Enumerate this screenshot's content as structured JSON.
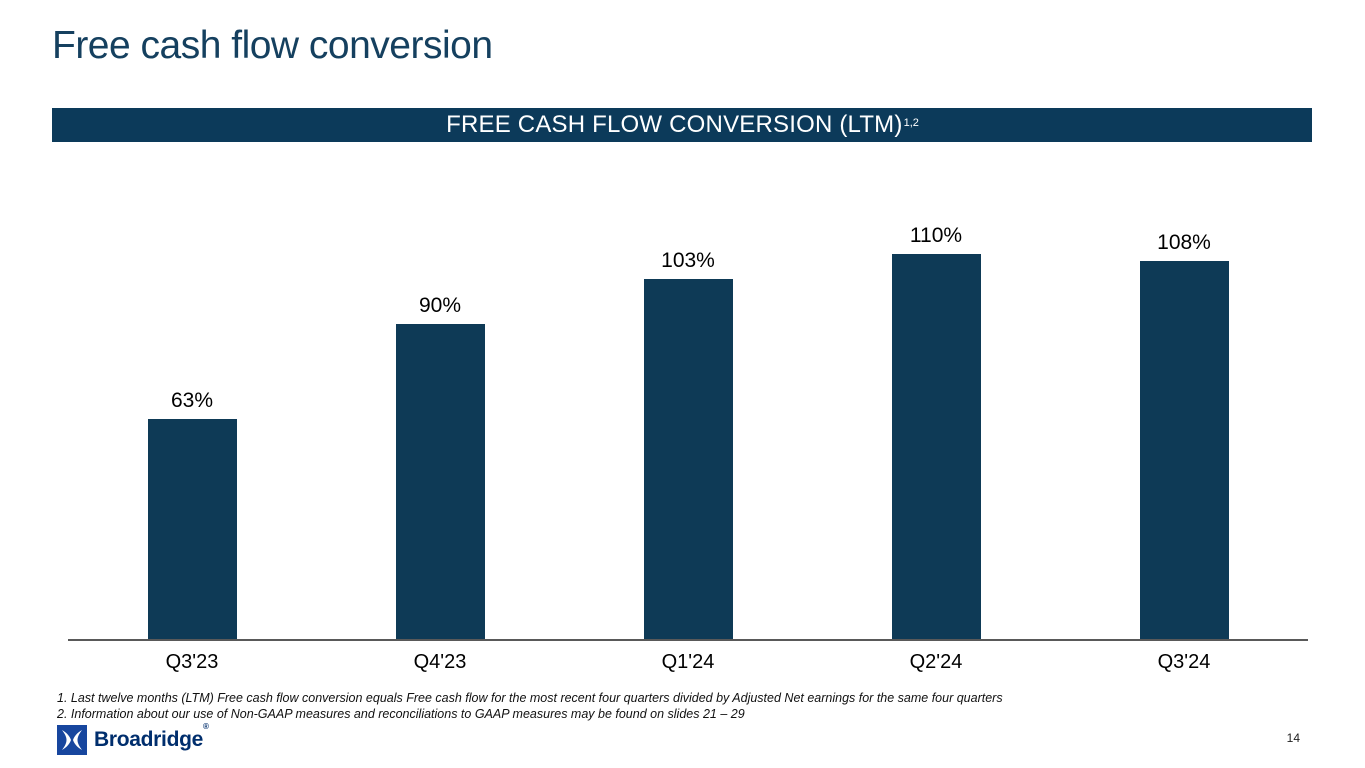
{
  "slide": {
    "title": "Free cash flow conversion",
    "page_number": "14"
  },
  "banner": {
    "text": "FREE CASH FLOW CONVERSION (LTM)",
    "superscript": "1,2"
  },
  "chart_data": {
    "type": "bar",
    "categories": [
      "Q3'23",
      "Q4'23",
      "Q1'24",
      "Q2'24",
      "Q3'24"
    ],
    "values": [
      63,
      90,
      103,
      110,
      108
    ],
    "value_labels": [
      "63%",
      "90%",
      "103%",
      "110%",
      "108%"
    ],
    "title": "FREE CASH FLOW CONVERSION (LTM)",
    "xlabel": "",
    "ylabel": "",
    "ylim": [
      0,
      120
    ],
    "grid": false,
    "legend": false,
    "bar_color": "#0E3A56",
    "axis_line_color": "#595959"
  },
  "footnotes": [
    "1. Last twelve months (LTM) Free cash flow conversion equals Free cash flow for the most recent four quarters divided by Adjusted Net earnings for the same four quarters",
    "2. Information about our use of Non-GAAP measures and reconciliations to GAAP measures may be found on slides 21 – 29"
  ],
  "logo": {
    "text": "Broadridge",
    "registered": "®"
  },
  "colors": {
    "title_text": "#15405F",
    "banner_bg": "#0C3A5A",
    "logo_square": "#17469E",
    "logo_text": "#002E6D"
  }
}
